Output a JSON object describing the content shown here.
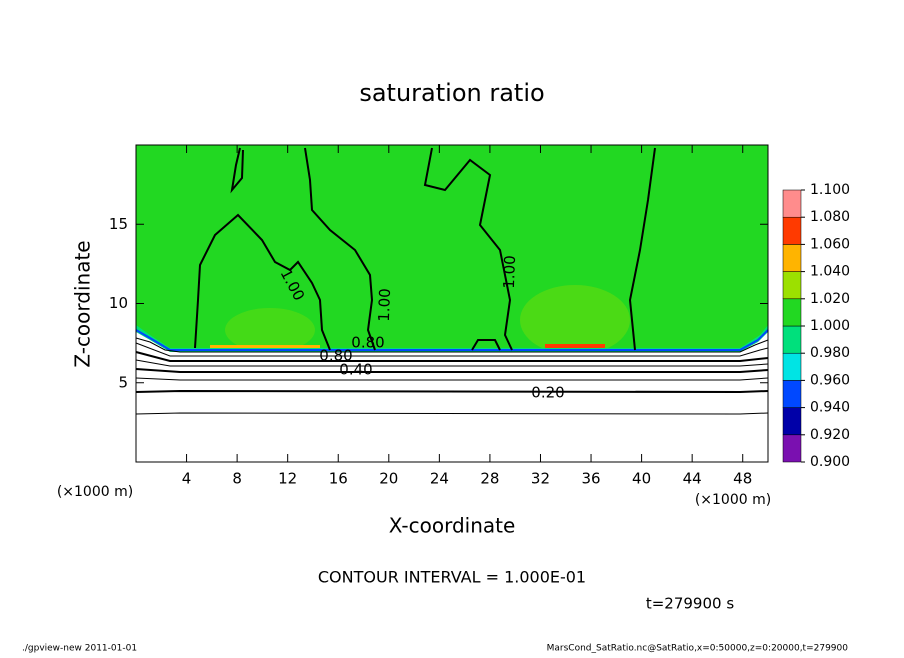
{
  "chart_data": {
    "type": "contour",
    "title": "saturation ratio",
    "x_label": "X-coordinate",
    "y_label": "Z-coordinate",
    "x_unit": "(×1000 m)",
    "xlim": [
      0,
      50
    ],
    "xticks": [
      4,
      8,
      12,
      16,
      20,
      24,
      28,
      32,
      36,
      40,
      44,
      48
    ],
    "ylim": [
      0,
      20
    ],
    "yticks": [
      5,
      10,
      15
    ],
    "colorbar": {
      "ticks": [
        {
          "value": 0.9,
          "label": "0.900"
        },
        {
          "value": 0.92,
          "label": "0.920"
        },
        {
          "value": 0.94,
          "label": "0.940"
        },
        {
          "value": 0.96,
          "label": "0.960"
        },
        {
          "value": 0.98,
          "label": "0.980"
        },
        {
          "value": 1.0,
          "label": "1.000"
        },
        {
          "value": 1.02,
          "label": "1.020"
        },
        {
          "value": 1.04,
          "label": "1.040"
        },
        {
          "value": 1.06,
          "label": "1.060"
        },
        {
          "value": 1.08,
          "label": "1.080"
        },
        {
          "value": 1.1,
          "label": "1.100"
        }
      ],
      "colors": [
        "#7a10b0",
        "#0000a8",
        "#0048ff",
        "#00e4e4",
        "#00e07c",
        "#22d822",
        "#9ce000",
        "#ffb400",
        "#ff3a00",
        "#ff8c8c"
      ]
    },
    "contour_labels": [
      "1.00",
      "1.00",
      "1.00",
      "0.80",
      "0.80",
      "0.40",
      "0.20"
    ],
    "contour_interval": "CONTOUR INTERVAL = 1.000E-01",
    "time": "t=279900 s",
    "footer_left": "./gpview-new  2011-01-01",
    "footer_right": "MarsCond_SatRatio.nc@SatRatio,x=0:50000,z=0:20000,t=279900"
  }
}
